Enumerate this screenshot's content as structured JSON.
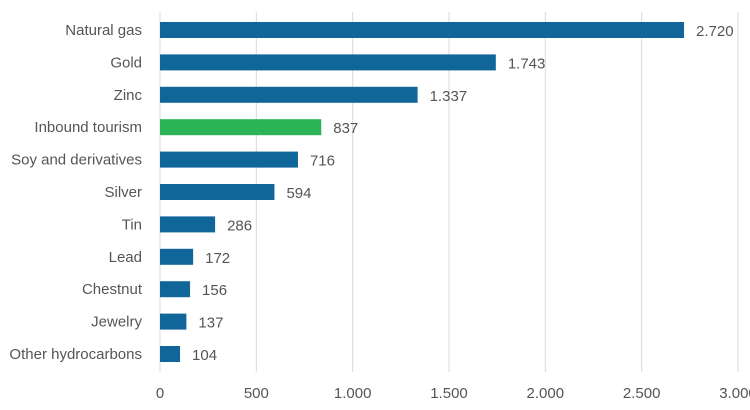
{
  "chart_data": {
    "type": "bar",
    "orientation": "horizontal",
    "categories": [
      "Natural gas",
      "Gold",
      "Zinc",
      "Inbound tourism",
      "Soy and derivatives",
      "Silver",
      "Tin",
      "Lead",
      "Chestnut",
      "Jewelry",
      "Other hydrocarbons"
    ],
    "values": [
      2720,
      1743,
      1337,
      837,
      716,
      594,
      286,
      172,
      156,
      137,
      104
    ],
    "value_labels": [
      "2.720",
      "1.743",
      "1.337",
      "837",
      "716",
      "594",
      "286",
      "172",
      "156",
      "137",
      "104"
    ],
    "bar_colors": [
      "#106599",
      "#106599",
      "#106599",
      "#2ab455",
      "#106599",
      "#106599",
      "#106599",
      "#106599",
      "#106599",
      "#106599",
      "#106599"
    ],
    "xlim": [
      0,
      3000
    ],
    "x_ticks": [
      0,
      500,
      1000,
      1500,
      2000,
      2500,
      3000
    ],
    "x_tick_labels": [
      "0",
      "500",
      "1.000",
      "1.500",
      "2.000",
      "2.500",
      "3.000"
    ],
    "grid": "vertical",
    "title": "",
    "xlabel": "",
    "ylabel": ""
  }
}
